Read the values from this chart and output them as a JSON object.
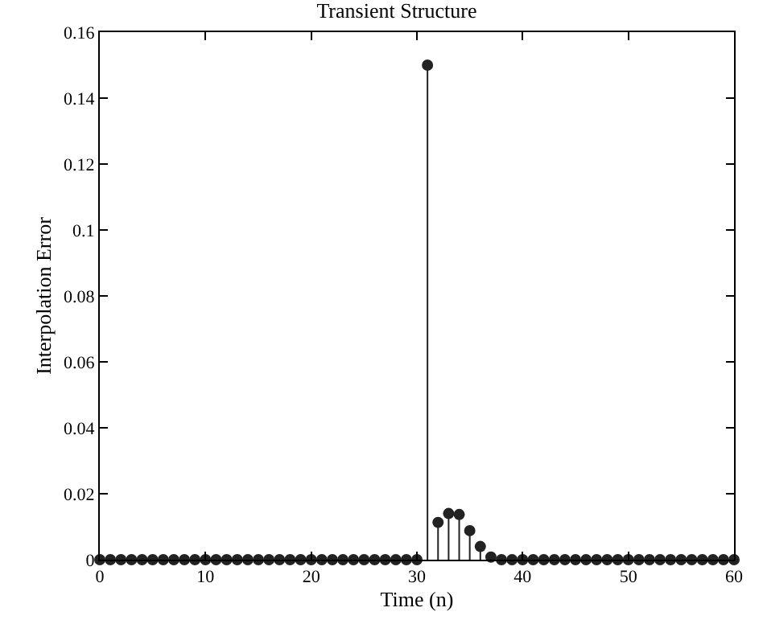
{
  "chart_data": {
    "type": "lollipop",
    "title": "Transient Structure",
    "xlabel": "Time (n)",
    "ylabel": "Interpolation Error",
    "x": [
      0,
      1,
      2,
      3,
      4,
      5,
      6,
      7,
      8,
      9,
      10,
      11,
      12,
      13,
      14,
      15,
      16,
      17,
      18,
      19,
      20,
      21,
      22,
      23,
      24,
      25,
      26,
      27,
      28,
      29,
      30,
      31,
      32,
      33,
      34,
      35,
      36,
      37,
      38,
      39,
      40,
      41,
      42,
      43,
      44,
      45,
      46,
      47,
      48,
      49,
      50,
      51,
      52,
      53,
      54,
      55,
      56,
      57,
      58,
      59,
      60
    ],
    "values": [
      0,
      0,
      0,
      0,
      0,
      0,
      0,
      0,
      0,
      0,
      0,
      0,
      0,
      0,
      0,
      0,
      0,
      0,
      0,
      0,
      0,
      0,
      0,
      0,
      0,
      0,
      0,
      0,
      0,
      0,
      0,
      0.15,
      0.0113,
      0.014,
      0.0137,
      0.0088,
      0.004,
      0.0008,
      0,
      0,
      0,
      0,
      0,
      0,
      0,
      0,
      0,
      0,
      0,
      0,
      0,
      0,
      0,
      0,
      0,
      0,
      0,
      0,
      0,
      0,
      0
    ],
    "color": "#222222",
    "marker": "circle",
    "xlim": [
      0,
      60
    ],
    "xticks": [
      0,
      10,
      20,
      30,
      40,
      50,
      60
    ],
    "ylim": [
      0,
      0.16
    ],
    "yticks": [
      0,
      0.02,
      0.04,
      0.06,
      0.08,
      0.1,
      0.12,
      0.14,
      0.16
    ]
  }
}
